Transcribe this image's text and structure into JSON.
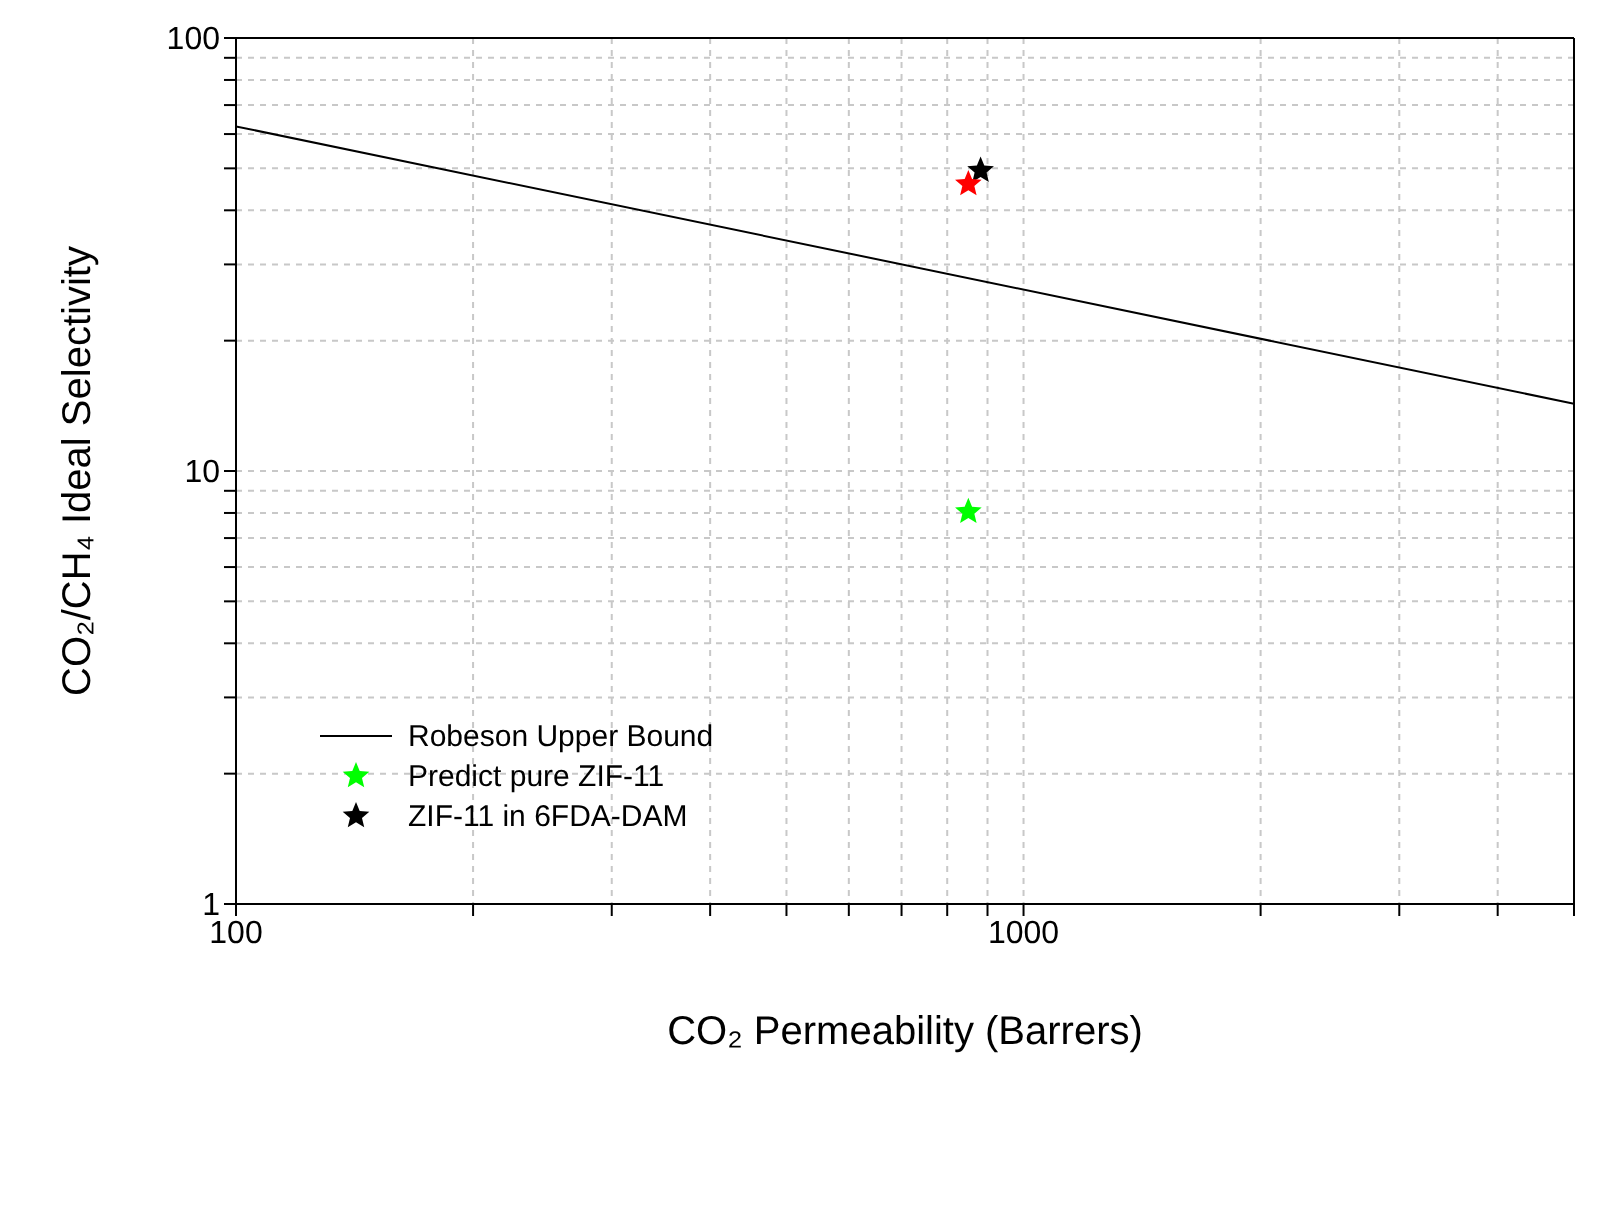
{
  "chart_data": {
    "type": "scatter",
    "xlabel": "CO₂ Permeability (Barrers)",
    "ylabel": "CO₂/CH₄ Ideal Selectivity",
    "log": "xy",
    "grid": true,
    "legend": "bottom left",
    "marker": "star",
    "xlim": [
      100,
      5000
    ],
    "xticks": [
      100,
      {
        "value": 200,
        "label": null
      },
      {
        "value": 300,
        "label": null
      },
      {
        "value": 400,
        "label": null
      },
      {
        "value": 500,
        "label": null
      },
      {
        "value": 600,
        "label": null
      },
      {
        "value": 700,
        "label": null
      },
      {
        "value": 800,
        "label": null
      },
      {
        "value": 900,
        "label": null
      },
      1000,
      {
        "value": 2000,
        "label": null
      },
      {
        "value": 3000,
        "label": null
      },
      {
        "value": 4000,
        "label": null
      },
      {
        "value": 5000,
        "label": null
      }
    ],
    "ylim": [
      1,
      100
    ],
    "yticks": [
      1,
      {
        "value": 2,
        "label": null
      },
      {
        "value": 3,
        "label": null
      },
      {
        "value": 4,
        "label": null
      },
      {
        "value": 5,
        "label": null
      },
      {
        "value": 6,
        "label": null
      },
      {
        "value": 7,
        "label": null
      },
      {
        "value": 8,
        "label": null
      },
      {
        "value": 9,
        "label": null
      },
      10,
      {
        "value": 20,
        "label": null
      },
      {
        "value": 30,
        "label": null
      },
      {
        "value": 40,
        "label": null
      },
      {
        "value": 50,
        "label": null
      },
      {
        "value": 60,
        "label": null
      },
      {
        "value": 70,
        "label": null
      },
      {
        "value": 80,
        "label": null
      },
      {
        "value": 90,
        "label": null
      },
      100
    ],
    "series": [
      {
        "name": "Robeson Upper Bound",
        "type": "line",
        "marker": "none",
        "line_style": "solid",
        "color": "#000000",
        "x": [
          100,
          5000
        ],
        "values": [
          62.5,
          14.3
        ]
      },
      {
        "name": "Predict pure ZIF-11",
        "color": "#00ff00",
        "x": [
          851
        ],
        "values": [
          8.05
        ]
      },
      {
        "name": "ZIF-11 in 6FDA-DAM",
        "color": "#000000",
        "x": [
          882
        ],
        "values": [
          49.4
        ]
      },
      {
        "color": "#ff0000",
        "x": [
          851
        ],
        "values": [
          46
        ]
      }
    ]
  }
}
